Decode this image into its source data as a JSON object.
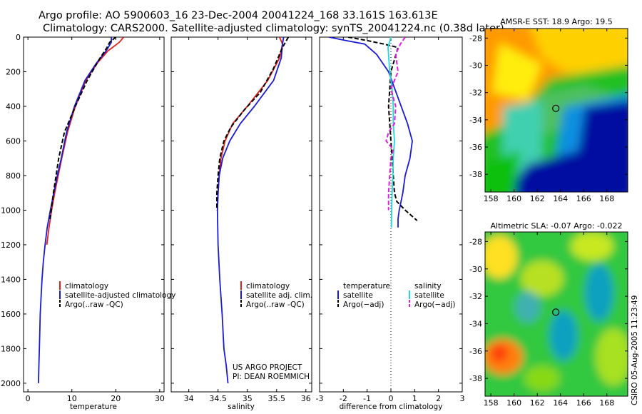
{
  "title_line1": "Argo profile: AO 5900603_16 23-Dec-2004 20041224_168 33.161S 163.613E",
  "title_line2": "Climatology: CARS2000. Satellite-adjusted climatology: synTS_20041224.nc (0.38d later)",
  "colors": {
    "climatology": "#e8201c",
    "satellite": "#1a1ad6",
    "argo": "#000000",
    "sat_salinity": "#22d8d8",
    "argo_salinity": "#e020e0"
  },
  "credit_line1": "US ARGO PROJECT",
  "credit_line2": "PI: DEAN ROEMMICH",
  "side_label": "CSIRO 05-Aug-2005 11:23:49",
  "legend_temp": {
    "climatology": "climatology",
    "satellite": "satellite-adjusted climatology",
    "argo": "Argo(..raw -QC)"
  },
  "legend_sal": {
    "climatology": "climatology",
    "satellite": "satellite adj. clim.",
    "argo": "Argo(..raw -QC)"
  },
  "legend_diff": {
    "temp_head": "temperature",
    "temp_sat": "satellite",
    "temp_argo": "Argo(−adj)",
    "sal_head": "salinity",
    "sal_sat": "satellite",
    "sal_argo": "Argo(−adj)"
  },
  "map_sst": {
    "title": "AMSR-E SST: 18.9 Argo: 19.5",
    "xticks": [
      "158",
      "160",
      "162",
      "164",
      "166",
      "168"
    ],
    "yticks": [
      "-28",
      "-30",
      "-32",
      "-34",
      "-36",
      "-38"
    ],
    "xlim": [
      157.5,
      169.8
    ],
    "ylim": [
      -39.3,
      -27.3
    ],
    "float_lon": 163.6,
    "float_lat": -33.16
  },
  "map_sla": {
    "title": "Altimetric SLA: -0.07 Argo: -0.022",
    "xticks": [
      "158",
      "160",
      "162",
      "164",
      "166",
      "168"
    ],
    "yticks": [
      "-28",
      "-30",
      "-32",
      "-34",
      "-36",
      "-38"
    ],
    "xlim": [
      157.5,
      169.8
    ],
    "ylim": [
      -39.3,
      -27.3
    ],
    "float_lon": 163.6,
    "float_lat": -33.16
  },
  "chart_data": [
    {
      "type": "line",
      "xlabel": "temperature",
      "ylabel": "",
      "xlim": [
        -1,
        31
      ],
      "ylim": [
        2050,
        0
      ],
      "xticks": [
        0,
        10,
        20,
        30
      ],
      "yticks": [
        0,
        200,
        400,
        600,
        800,
        1000,
        1200,
        1400,
        1600,
        1800,
        2000
      ],
      "series": [
        {
          "name": "climatology",
          "key": "climatology",
          "x": [
            21.8,
            20.8,
            18.2,
            15.8,
            13.2,
            10.8,
            9.0,
            7.7,
            6.9,
            6.1,
            5.4,
            4.8,
            4.3
          ],
          "y": [
            0,
            30,
            80,
            150,
            250,
            400,
            550,
            700,
            800,
            900,
            1000,
            1100,
            1200
          ]
        },
        {
          "name": "satellite-adjusted climatology",
          "key": "satellite",
          "x": [
            19.0,
            19.0,
            17.8,
            15.6,
            13.0,
            10.6,
            8.8,
            7.6,
            6.7,
            5.9,
            5.1,
            4.4,
            3.9,
            3.5,
            3.2,
            3.0,
            2.8,
            2.6,
            2.5,
            2.4
          ],
          "y": [
            0,
            30,
            80,
            150,
            250,
            400,
            550,
            700,
            800,
            900,
            1000,
            1100,
            1200,
            1300,
            1400,
            1500,
            1600,
            1800,
            1900,
            2000
          ]
        },
        {
          "name": "Argo(..raw -QC)",
          "key": "argo",
          "dash": true,
          "x": [
            20.0,
            18.6,
            18.0,
            16.2,
            13.5,
            10.8,
            8.3,
            7.0,
            6.4,
            5.8,
            5.3,
            5.0
          ],
          "y": [
            0,
            30,
            60,
            130,
            250,
            400,
            550,
            700,
            800,
            900,
            1000,
            1060
          ]
        }
      ]
    },
    {
      "type": "line",
      "xlabel": "salinity",
      "ylabel": "",
      "xlim": [
        33.7,
        36.1
      ],
      "ylim": [
        2050,
        0
      ],
      "xticks": [
        34,
        34.5,
        35,
        35.5,
        36
      ],
      "xticklabels": [
        "34",
        "34.5",
        "35",
        "35.5",
        "36"
      ],
      "series": [
        {
          "name": "climatology",
          "key": "climatology",
          "x": [
            35.55,
            35.6,
            35.55,
            35.35,
            35.0,
            34.75,
            34.62,
            34.55,
            34.52,
            34.5,
            34.49
          ],
          "y": [
            0,
            40,
            120,
            250,
            400,
            500,
            600,
            700,
            800,
            900,
            1000
          ]
        },
        {
          "name": "satellite adj. clim.",
          "key": "satellite",
          "x": [
            35.62,
            35.6,
            35.58,
            35.45,
            35.12,
            34.88,
            34.7,
            34.58,
            34.52,
            34.5,
            34.49,
            34.5,
            34.53,
            34.57,
            34.6,
            34.64,
            34.67
          ],
          "y": [
            0,
            40,
            120,
            250,
            400,
            500,
            600,
            700,
            800,
            900,
            1000,
            1200,
            1400,
            1600,
            1800,
            1900,
            2000
          ]
        },
        {
          "name": "Argo(..raw -QC)",
          "key": "argo",
          "dash": true,
          "x": [
            35.7,
            35.6,
            35.45,
            35.22,
            34.95,
            34.72,
            34.6,
            34.53,
            34.5,
            34.48,
            34.48
          ],
          "y": [
            0,
            60,
            180,
            320,
            420,
            520,
            600,
            700,
            800,
            900,
            1000
          ]
        }
      ]
    },
    {
      "type": "line",
      "xlabel": "difference from climatology",
      "ylabel": "",
      "xlim": [
        -3,
        3
      ],
      "ylim": [
        2050,
        0
      ],
      "xticks": [
        -3,
        -2,
        -1,
        0,
        1,
        2,
        3
      ],
      "xticklabels": [
        "-3",
        "-2",
        "-1",
        "0",
        "1",
        "2",
        "3"
      ],
      "series": [
        {
          "name": "temperature satellite",
          "key": "satellite",
          "x": [
            -2.6,
            -1.9,
            -1.1,
            -0.6,
            -0.1,
            0.3,
            0.7,
            0.9,
            0.8,
            0.6,
            0.5,
            0.35,
            0.3,
            0.3
          ],
          "y": [
            0,
            20,
            40,
            100,
            200,
            350,
            500,
            600,
            700,
            800,
            900,
            1000,
            1050,
            1100
          ]
        },
        {
          "name": "temperature Argo(-adj)",
          "key": "argo",
          "dash": true,
          "x": [
            -1.8,
            -1.0,
            -0.3,
            0.3,
            0.0,
            -0.1,
            0.0,
            0.1,
            0.15,
            0.25,
            0.6,
            1.1
          ],
          "y": [
            0,
            20,
            40,
            60,
            200,
            400,
            600,
            800,
            900,
            950,
            1000,
            1060
          ]
        },
        {
          "name": "salinity satellite",
          "key": "sat_salinity",
          "x": [
            0.0,
            -0.12,
            -0.05,
            0.05,
            0.1,
            0.1,
            0.15,
            0.1,
            0.08,
            0.05,
            0.03,
            0.02
          ],
          "y": [
            0,
            60,
            200,
            300,
            400,
            500,
            600,
            700,
            800,
            900,
            1000,
            1100
          ]
        },
        {
          "name": "salinity Argo(-adj)",
          "key": "argo_salinity",
          "dash": true,
          "x": [
            0.6,
            0.4,
            0.2,
            0.3,
            0.0,
            0.2,
            0.15,
            -0.1,
            -0.2,
            0.1,
            0.0,
            -0.05,
            -0.1,
            -0.1
          ],
          "y": [
            0,
            40,
            100,
            200,
            300,
            400,
            500,
            550,
            600,
            650,
            700,
            800,
            900,
            1000
          ]
        }
      ]
    }
  ]
}
